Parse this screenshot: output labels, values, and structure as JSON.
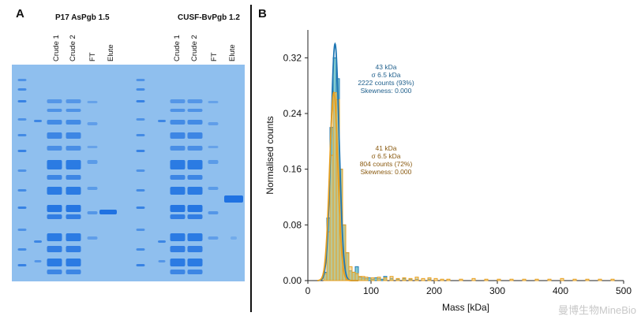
{
  "panels": {
    "a_label": "A",
    "b_label": "B"
  },
  "gel": {
    "gel_color": "#8fbfee",
    "band_color": "#1a6ee0",
    "gels": [
      {
        "title": "P17 AsPgb 1.5",
        "lanes": [
          "Crude 1",
          "Crude 2",
          "FT",
          "Elute"
        ]
      },
      {
        "title": "CUSF-BvPgb 1.2",
        "lanes": [
          "Crude 1",
          "Crude 2",
          "FT",
          "Elute"
        ]
      }
    ]
  },
  "chart_data": {
    "type": "bar",
    "subtype": "histogram",
    "xlabel": "Mass [kDa]",
    "ylabel": "Normalised counts",
    "xlim": [
      0,
      500
    ],
    "ylim": [
      0,
      0.36
    ],
    "xticks": [
      0,
      100,
      200,
      300,
      400,
      500
    ],
    "yticks": [
      0.0,
      0.08,
      0.16,
      0.24,
      0.32
    ],
    "ytick_labels": [
      "0.00",
      "0.08",
      "0.16",
      "0.24",
      "0.32"
    ],
    "grid": false,
    "bin_width": 5,
    "series": [
      {
        "color": "#1f77b4",
        "fill": "#1fa2a8",
        "bin_left": [
          25,
          30,
          35,
          40,
          45,
          50,
          55,
          60,
          65,
          70,
          75,
          80,
          85,
          90,
          95,
          100,
          105,
          110,
          115,
          120,
          130,
          140,
          150,
          160,
          170,
          190
        ],
        "values": [
          0.012,
          0.09,
          0.22,
          0.32,
          0.29,
          0.16,
          0.08,
          0.04,
          0.014,
          0.012,
          0.02,
          0.005,
          0.004,
          0.003,
          0.004,
          0.002,
          0.004,
          0.003,
          0.002,
          0.006,
          0.003,
          0.002,
          0.003,
          0.002,
          0.002,
          0.002
        ],
        "fit": {
          "type": "gaussian",
          "center": 43,
          "sigma": 6.5,
          "peak": 0.34
        },
        "annotation": [
          "43 kDa",
          "σ 6.5 kDa",
          "2222 counts (93%)",
          "Skewness: 0.000"
        ]
      },
      {
        "color": "#e8a020",
        "fill": "#e8c26a",
        "bin_left": [
          25,
          30,
          35,
          40,
          45,
          50,
          55,
          60,
          65,
          70,
          75,
          80,
          85,
          90,
          100,
          110,
          120,
          130,
          140,
          150,
          160,
          170,
          180,
          190,
          200,
          210,
          220,
          240,
          260,
          280,
          300,
          320,
          340,
          360,
          380,
          400,
          420,
          440,
          460,
          480
        ],
        "values": [
          0.01,
          0.07,
          0.18,
          0.27,
          0.26,
          0.16,
          0.08,
          0.04,
          0.02,
          0.012,
          0.01,
          0.006,
          0.006,
          0.005,
          0.004,
          0.005,
          0.004,
          0.006,
          0.003,
          0.004,
          0.003,
          0.005,
          0.003,
          0.004,
          0.003,
          0.002,
          0.002,
          0.002,
          0.003,
          0.002,
          0.002,
          0.002,
          0.002,
          0.002,
          0.002,
          0.003,
          0.002,
          0.002,
          0.002,
          0.002
        ],
        "fit": {
          "type": "gaussian",
          "center": 41,
          "sigma": 6.5,
          "peak": 0.27
        },
        "annotation": [
          "41 kDa",
          "σ 6.5 kDa",
          "804 counts (72%)",
          "Skewness: 0.000"
        ]
      }
    ],
    "annotation_colors": [
      "#1f5f8c",
      "#8a5a10"
    ]
  },
  "watermark": "曼博生物MineBio"
}
